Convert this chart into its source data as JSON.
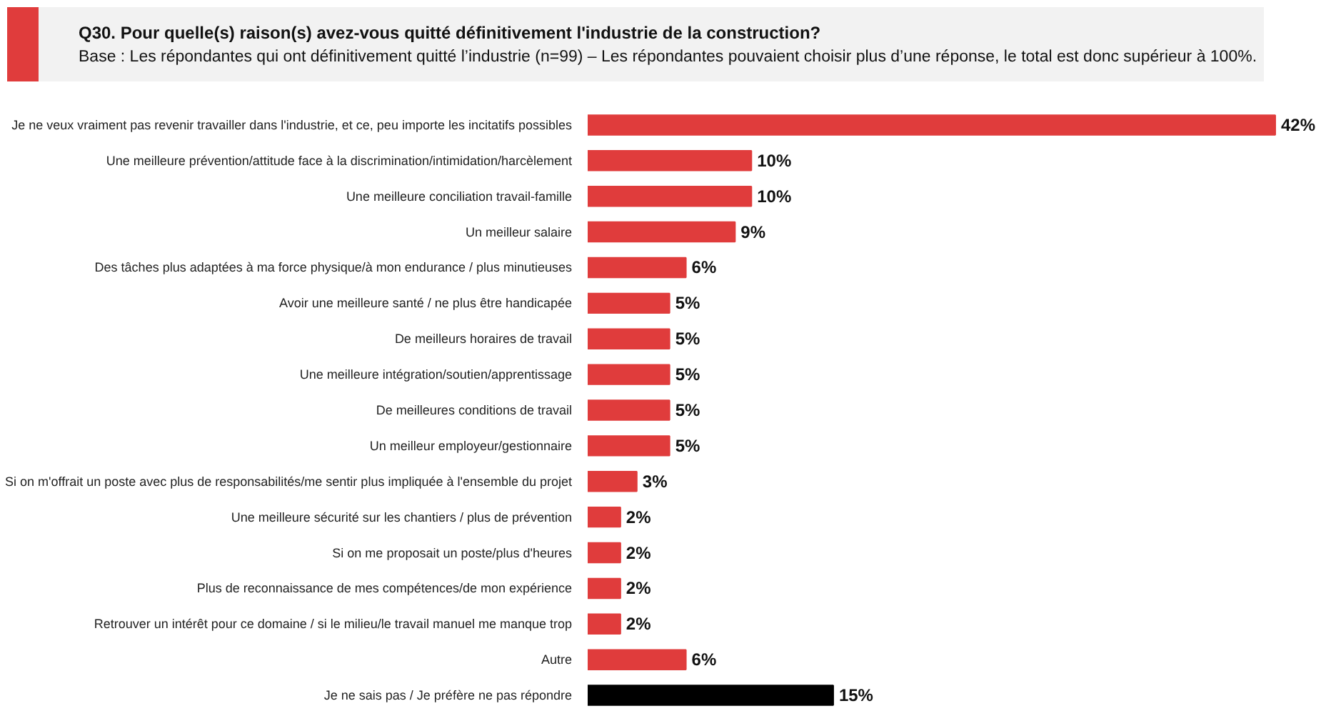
{
  "chart_data": {
    "type": "bar",
    "orientation": "horizontal",
    "title": "Q30. Pour quelle(s) raison(s) avez-vous quitté définitivement l'industrie de la construction?",
    "subtitle": "Base : Les répondantes qui ont définitivement quitté l’industrie (n=99) – Les répondantes pouvaient choisir plus d’une réponse, le total est donc supérieur à 100%.",
    "categories": [
      "Je ne veux vraiment pas revenir travailler dans l'industrie, et ce, peu importe les incitatifs possibles",
      "Une meilleure prévention/attitude face à la discrimination/intimidation/harcèlement",
      "Une meilleure conciliation travail-famille",
      "Un meilleur salaire",
      "Des tâches plus adaptées à ma force physique/à mon endurance / plus minutieuses",
      "Avoir une meilleure santé / ne plus être handicapée",
      "De meilleurs horaires de travail",
      "Une meilleure intégration/soutien/apprentissage",
      "De meilleures conditions de travail",
      "Un meilleur employeur/gestionnaire",
      "Si on m'offrait un poste avec plus de responsabilités/me sentir plus impliquée à l'ensemble du projet",
      "Une meilleure sécurité sur les chantiers / plus de prévention",
      "Si on me proposait un poste/plus d'heures",
      "Plus de reconnaissance de mes compétences/de mon expérience",
      "Retrouver un intérêt pour ce domaine / si le milieu/le travail manuel me manque trop",
      "Autre",
      "Je ne sais pas / Je préfère ne pas répondre"
    ],
    "values": [
      42,
      10,
      10,
      9,
      6,
      5,
      5,
      5,
      5,
      5,
      3,
      2,
      2,
      2,
      2,
      6,
      15
    ],
    "value_labels": [
      "42%",
      "10%",
      "10%",
      "9%",
      "6%",
      "5%",
      "5%",
      "5%",
      "5%",
      "5%",
      "3%",
      "2%",
      "2%",
      "2%",
      "2%",
      "6%",
      "15%"
    ],
    "colors": [
      "#e03c3c",
      "#e03c3c",
      "#e03c3c",
      "#e03c3c",
      "#e03c3c",
      "#e03c3c",
      "#e03c3c",
      "#e03c3c",
      "#e03c3c",
      "#e03c3c",
      "#e03c3c",
      "#e03c3c",
      "#e03c3c",
      "#e03c3c",
      "#e03c3c",
      "#e03c3c",
      "#000000"
    ],
    "grid": false
  }
}
